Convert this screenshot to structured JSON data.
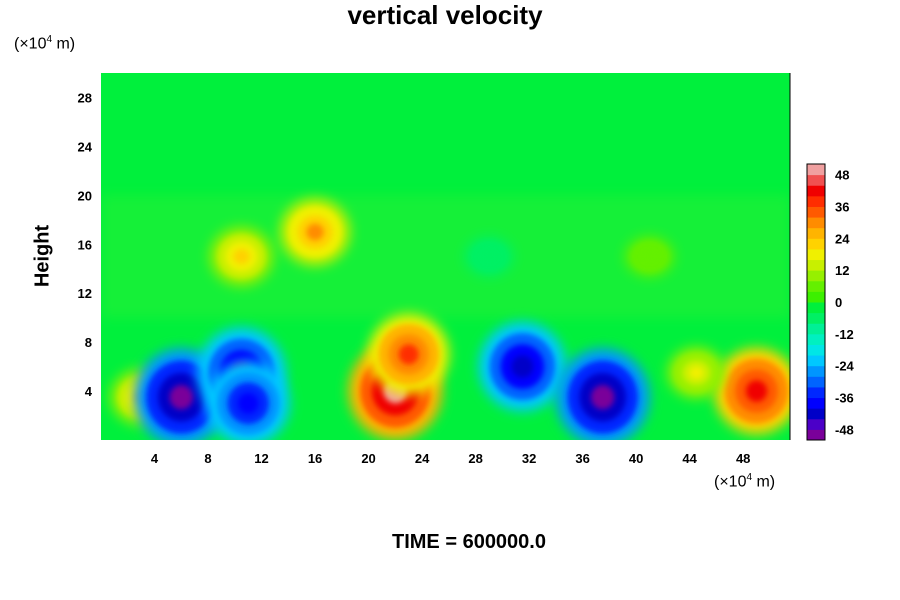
{
  "chart_data": {
    "type": "heatmap",
    "title": "vertical velocity",
    "ylabel": "Height",
    "x_unit_label": [
      "(×10",
      "4",
      " m)"
    ],
    "y_unit_label": [
      "(×10",
      "4",
      " m)"
    ],
    "footer": "TIME = 600000.0",
    "xlim": [
      0,
      51.5
    ],
    "ylim": [
      0,
      30
    ],
    "x_ticks": [
      4,
      8,
      12,
      16,
      20,
      24,
      28,
      32,
      36,
      40,
      44,
      48
    ],
    "y_ticks": [
      4,
      8,
      12,
      16,
      20,
      24,
      28
    ],
    "colorbar": {
      "range": [
        -52,
        52
      ],
      "tick_values": [
        48,
        36,
        24,
        12,
        0,
        -12,
        -24,
        -36,
        -48
      ],
      "levels": 26,
      "colors": [
        "#7a009a",
        "#4b00c8",
        "#0000c8",
        "#0000ff",
        "#0028ff",
        "#0064ff",
        "#0096ff",
        "#00c8ff",
        "#00e6e6",
        "#00f0c0",
        "#00f096",
        "#00f064",
        "#00f03c",
        "#3cf000",
        "#64f000",
        "#96f000",
        "#c8f000",
        "#f0f000",
        "#ffd200",
        "#ffb400",
        "#ff8c00",
        "#ff5a00",
        "#ff2d00",
        "#f00000",
        "#f05050",
        "#f0a0a0"
      ]
    },
    "features": [
      {
        "x": 3,
        "y": 3.5,
        "value": 20
      },
      {
        "x": 6,
        "y": 3.5,
        "value": -50
      },
      {
        "x": 10.5,
        "y": 5.5,
        "value": -45
      },
      {
        "x": 11,
        "y": 3,
        "value": -40
      },
      {
        "x": 10.5,
        "y": 15,
        "value": 22
      },
      {
        "x": 16,
        "y": 17,
        "value": 28
      },
      {
        "x": 22,
        "y": 4,
        "value": 50
      },
      {
        "x": 23,
        "y": 7,
        "value": 38
      },
      {
        "x": 31.5,
        "y": 6,
        "value": -44
      },
      {
        "x": 37.5,
        "y": 3.5,
        "value": -50
      },
      {
        "x": 49,
        "y": 4,
        "value": 42
      },
      {
        "x": 44.5,
        "y": 5.5,
        "value": 16
      },
      {
        "x": 41,
        "y": 15,
        "value": 8
      },
      {
        "x": 29,
        "y": 15,
        "value": -8
      }
    ]
  }
}
